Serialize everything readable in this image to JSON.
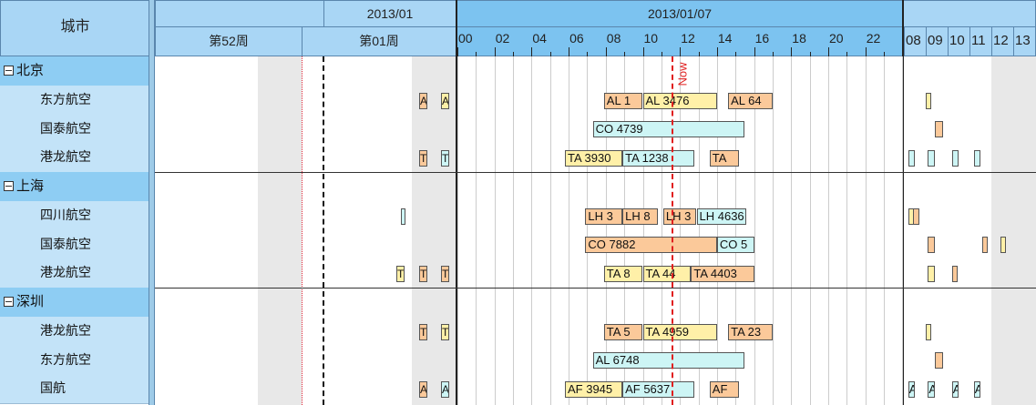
{
  "header": {
    "city_label": "城市",
    "month_label": "2013/01",
    "day_label": "2013/01/07",
    "week_labels": [
      "第52周",
      "第01周"
    ]
  },
  "hour_ticks": [
    "00",
    "02",
    "04",
    "06",
    "08",
    "10",
    "12",
    "14",
    "16",
    "18",
    "20",
    "22"
  ],
  "day_ticks": [
    "08",
    "09",
    "10",
    "11",
    "12",
    "13"
  ],
  "now_label": "Now",
  "groups": [
    {
      "name": "北京",
      "rows": [
        {
          "name": "东方航空",
          "bars": [
            {
              "label": "A",
              "color": "orange",
              "seg": "left",
              "start": 0,
              "end": 0
            },
            {
              "label": "A",
              "color": "yellow",
              "seg": "left",
              "start": 1,
              "end": 1
            },
            {
              "label": "AL 1",
              "color": "orange",
              "seg": "main",
              "start": 7.9,
              "end": 10.0
            },
            {
              "label": "AL 3476",
              "color": "yellow",
              "seg": "main",
              "start": 10.0,
              "end": 14.0
            },
            {
              "label": "AL 64",
              "color": "orange",
              "seg": "main",
              "start": 14.6,
              "end": 17.0
            },
            {
              "label": "",
              "color": "yellow",
              "seg": "right",
              "start": 9.0,
              "end": 9.2
            }
          ]
        },
        {
          "name": "国泰航空",
          "bars": [
            {
              "label": "CO 4739",
              "color": "cyan",
              "seg": "main",
              "start": 7.3,
              "end": 15.5
            },
            {
              "label": "",
              "color": "orange",
              "seg": "right",
              "start": 9.4,
              "end": 9.8
            }
          ]
        },
        {
          "name": "港龙航空",
          "bars": [
            {
              "label": "T",
              "color": "orange",
              "seg": "left",
              "start": 0,
              "end": 0
            },
            {
              "label": "T",
              "color": "cyan",
              "seg": "left",
              "start": 1,
              "end": 1
            },
            {
              "label": "TA 3930",
              "color": "yellow",
              "seg": "main",
              "start": 5.8,
              "end": 8.9
            },
            {
              "label": "TA 1238",
              "color": "cyan",
              "seg": "main",
              "start": 8.9,
              "end": 12.8
            },
            {
              "label": "TA",
              "color": "orange",
              "seg": "main",
              "start": 13.6,
              "end": 15.2
            },
            {
              "label": "",
              "color": "cyan",
              "seg": "right",
              "start": 8.2,
              "end": 8.5
            },
            {
              "label": "",
              "color": "cyan",
              "seg": "right",
              "start": 9.1,
              "end": 9.4
            },
            {
              "label": "",
              "color": "cyan",
              "seg": "right",
              "start": 10.2,
              "end": 10.5
            },
            {
              "label": "",
              "color": "cyan",
              "seg": "right",
              "start": 11.2,
              "end": 11.5
            }
          ]
        }
      ]
    },
    {
      "name": "上海",
      "rows": [
        {
          "name": "四川航空",
          "bars": [
            {
              "label": "",
              "color": "cyan",
              "seg": "lefta",
              "start": 0,
              "end": 0
            },
            {
              "label": "LH 3",
              "color": "orange",
              "seg": "main",
              "start": 6.9,
              "end": 8.9
            },
            {
              "label": "LH 8",
              "color": "orange",
              "seg": "main",
              "start": 8.9,
              "end": 10.8
            },
            {
              "label": "LH 3",
              "color": "orange",
              "seg": "main",
              "start": 11.1,
              "end": 12.9
            },
            {
              "label": "LH 4636",
              "color": "cyan",
              "seg": "main",
              "start": 12.9,
              "end": 15.6
            },
            {
              "label": "",
              "color": "yellow",
              "seg": "right",
              "start": 8.2,
              "end": 8.5
            },
            {
              "label": "",
              "color": "orange",
              "seg": "right",
              "start": 8.4,
              "end": 8.7
            }
          ]
        },
        {
          "name": "国泰航空",
          "bars": [
            {
              "label": "CO 7882",
              "color": "orange",
              "seg": "main",
              "start": 6.9,
              "end": 14.0
            },
            {
              "label": "CO 5",
              "color": "cyan",
              "seg": "main",
              "start": 14.0,
              "end": 16.0
            },
            {
              "label": "",
              "color": "orange",
              "seg": "right",
              "start": 9.1,
              "end": 9.4
            },
            {
              "label": "",
              "color": "orange",
              "seg": "right",
              "start": 11.6,
              "end": 11.8
            },
            {
              "label": "",
              "color": "yellow",
              "seg": "right",
              "start": 12.4,
              "end": 12.6
            }
          ]
        },
        {
          "name": "港龙航空",
          "bars": [
            {
              "label": "T",
              "color": "yellow",
              "seg": "leftb",
              "start": 0,
              "end": 0
            },
            {
              "label": "T",
              "color": "orange",
              "seg": "left",
              "start": 0,
              "end": 0
            },
            {
              "label": "T",
              "color": "orange",
              "seg": "left",
              "start": 1,
              "end": 1
            },
            {
              "label": "TA 8",
              "color": "yellow",
              "seg": "main",
              "start": 7.9,
              "end": 10.0
            },
            {
              "label": "TA 44",
              "color": "yellow",
              "seg": "main",
              "start": 10.0,
              "end": 12.6
            },
            {
              "label": "TA 4403",
              "color": "orange",
              "seg": "main",
              "start": 12.6,
              "end": 16.0
            },
            {
              "label": "",
              "color": "yellow",
              "seg": "right",
              "start": 9.1,
              "end": 9.4
            },
            {
              "label": "",
              "color": "orange",
              "seg": "right",
              "start": 10.2,
              "end": 10.4
            }
          ]
        }
      ]
    },
    {
      "name": "深圳",
      "rows": [
        {
          "name": "港龙航空",
          "bars": [
            {
              "label": "T",
              "color": "orange",
              "seg": "left",
              "start": 0,
              "end": 0
            },
            {
              "label": "T",
              "color": "yellow",
              "seg": "left",
              "start": 1,
              "end": 1
            },
            {
              "label": "TA 5",
              "color": "orange",
              "seg": "main",
              "start": 7.9,
              "end": 10.0
            },
            {
              "label": "TA 4959",
              "color": "yellow",
              "seg": "main",
              "start": 10.0,
              "end": 14.0
            },
            {
              "label": "TA 23",
              "color": "orange",
              "seg": "main",
              "start": 14.6,
              "end": 17.0
            },
            {
              "label": "",
              "color": "yellow",
              "seg": "right",
              "start": 9.0,
              "end": 9.2
            }
          ]
        },
        {
          "name": "东方航空",
          "bars": [
            {
              "label": "AL 6748",
              "color": "cyan",
              "seg": "main",
              "start": 7.3,
              "end": 15.5
            },
            {
              "label": "",
              "color": "orange",
              "seg": "right",
              "start": 9.4,
              "end": 9.8
            }
          ]
        },
        {
          "name": "国航",
          "bars": [
            {
              "label": "A",
              "color": "orange",
              "seg": "left",
              "start": 0,
              "end": 0
            },
            {
              "label": "A",
              "color": "cyan",
              "seg": "left",
              "start": 1,
              "end": 1
            },
            {
              "label": "AF 3945",
              "color": "yellow",
              "seg": "main",
              "start": 5.8,
              "end": 8.9
            },
            {
              "label": "AF 5637",
              "color": "cyan",
              "seg": "main",
              "start": 8.9,
              "end": 12.8
            },
            {
              "label": "AF",
              "color": "orange",
              "seg": "main",
              "start": 13.6,
              "end": 15.2
            },
            {
              "label": "A",
              "color": "cyan",
              "seg": "right",
              "start": 8.2,
              "end": 8.5
            },
            {
              "label": "A",
              "color": "cyan",
              "seg": "right",
              "start": 9.1,
              "end": 9.4
            },
            {
              "label": "A",
              "color": "cyan",
              "seg": "right",
              "start": 10.2,
              "end": 10.5
            },
            {
              "label": "A",
              "color": "cyan",
              "seg": "right",
              "start": 11.2,
              "end": 11.5
            }
          ]
        }
      ]
    }
  ]
}
